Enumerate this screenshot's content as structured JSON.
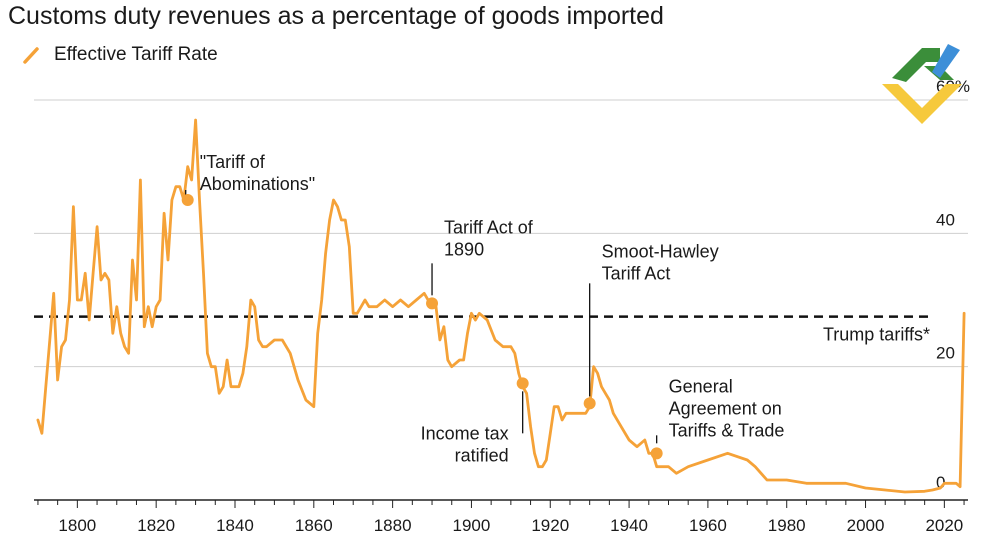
{
  "chart_data": {
    "type": "line",
    "title": "Customs duty revenues as a percentage of goods imported",
    "legend": "Effective Tariff Rate",
    "ylim": [
      0,
      60
    ],
    "xlim": [
      1789,
      2026
    ],
    "y_ticks": [
      {
        "value": 0,
        "label": "0"
      },
      {
        "value": 20,
        "label": "20"
      },
      {
        "value": 40,
        "label": "40"
      },
      {
        "value": 60,
        "label": "60%"
      }
    ],
    "x_ticks": [
      {
        "value": 1800,
        "label": "1800"
      },
      {
        "value": 1820,
        "label": "1820"
      },
      {
        "value": 1840,
        "label": "1840"
      },
      {
        "value": 1860,
        "label": "1860"
      },
      {
        "value": 1880,
        "label": "1880"
      },
      {
        "value": 1900,
        "label": "1900"
      },
      {
        "value": 1920,
        "label": "1920"
      },
      {
        "value": 1940,
        "label": "1940"
      },
      {
        "value": 1960,
        "label": "1960"
      },
      {
        "value": 1980,
        "label": "1980"
      },
      {
        "value": 2000,
        "label": "2000"
      },
      {
        "value": 2020,
        "label": "2020"
      }
    ],
    "series": [
      {
        "name": "Effective Tariff Rate",
        "color": "#f5a238",
        "x": [
          1790,
          1791,
          1792,
          1793,
          1794,
          1795,
          1796,
          1797,
          1798,
          1799,
          1800,
          1801,
          1802,
          1803,
          1804,
          1805,
          1806,
          1807,
          1808,
          1809,
          1810,
          1811,
          1812,
          1813,
          1814,
          1815,
          1816,
          1817,
          1818,
          1819,
          1820,
          1821,
          1822,
          1823,
          1824,
          1825,
          1826,
          1827,
          1828,
          1829,
          1830,
          1831,
          1832,
          1833,
          1834,
          1835,
          1836,
          1837,
          1838,
          1839,
          1840,
          1841,
          1842,
          1843,
          1844,
          1845,
          1846,
          1847,
          1848,
          1850,
          1852,
          1854,
          1856,
          1858,
          1860,
          1861,
          1862,
          1863,
          1864,
          1865,
          1866,
          1867,
          1868,
          1869,
          1870,
          1871,
          1872,
          1873,
          1874,
          1875,
          1876,
          1878,
          1880,
          1882,
          1884,
          1886,
          1888,
          1890,
          1891,
          1892,
          1893,
          1894,
          1895,
          1897,
          1898,
          1899,
          1900,
          1901,
          1902,
          1904,
          1906,
          1908,
          1910,
          1911,
          1912,
          1913,
          1914,
          1915,
          1916,
          1917,
          1918,
          1919,
          1920,
          1921,
          1922,
          1923,
          1924,
          1926,
          1928,
          1929,
          1930,
          1931,
          1932,
          1933,
          1934,
          1935,
          1936,
          1938,
          1940,
          1942,
          1944,
          1945,
          1946,
          1947,
          1948,
          1950,
          1952,
          1955,
          1960,
          1965,
          1970,
          1972,
          1975,
          1980,
          1985,
          1990,
          1995,
          2000,
          2005,
          2010,
          2015,
          2017,
          2019,
          2020,
          2022,
          2023,
          2024,
          2025
        ],
        "values": [
          12,
          10,
          17,
          24,
          31,
          18,
          23,
          24,
          30,
          44,
          30,
          30,
          34,
          27,
          34,
          41,
          33,
          34,
          33,
          25,
          29,
          25,
          23,
          22,
          36,
          30,
          48,
          26,
          29,
          26,
          29,
          30,
          43,
          36,
          45,
          47,
          47,
          45,
          50,
          48,
          57,
          45,
          34,
          22,
          20,
          20,
          16,
          17,
          21,
          17,
          17,
          17,
          19,
          23,
          30,
          29,
          24,
          23,
          23,
          24,
          24,
          22,
          18,
          15,
          14,
          25,
          30,
          37,
          42,
          45,
          44,
          42,
          42,
          38,
          28,
          28,
          29,
          30,
          29,
          29,
          29,
          30,
          29,
          30,
          29,
          30,
          31,
          29,
          29,
          24,
          26,
          21,
          20,
          21,
          21,
          25,
          28,
          27,
          28,
          27,
          24,
          23,
          23,
          22,
          19,
          17,
          16,
          11,
          7,
          5,
          5,
          6,
          10,
          14,
          14,
          12,
          13,
          13,
          13,
          13,
          14,
          20,
          19,
          17,
          16,
          15,
          13,
          11,
          9,
          8,
          9,
          7,
          7,
          5,
          5,
          5,
          4,
          5,
          6,
          7,
          6,
          5,
          3,
          3,
          2.5,
          2.5,
          2.5,
          1.8,
          1.5,
          1.2,
          1.3,
          1.5,
          1.8,
          2.5,
          2.5,
          2.5,
          2.0,
          28
        ]
      }
    ],
    "reference_lines": [
      {
        "label": "Trump tariffs*",
        "value": 27.5,
        "style": "dashed"
      }
    ],
    "annotations": [
      {
        "lines": [
          "\"Tariff of",
          "Abominations\""
        ],
        "year": 1828,
        "value": 45
      },
      {
        "lines": [
          "Tariff Act of",
          "1890"
        ],
        "year": 1890,
        "value": 29.5
      },
      {
        "lines": [
          "Smoot-Hawley",
          "Tariff Act"
        ],
        "year": 1930,
        "value": 14.5
      },
      {
        "lines": [
          "Income tax",
          "ratified"
        ],
        "year": 1913,
        "value": 17.5
      },
      {
        "lines": [
          "General",
          "Agreement on",
          "Tariffs & Trade"
        ],
        "year": 1947,
        "value": 7
      }
    ]
  },
  "logo": {
    "name": "brand-logo"
  }
}
